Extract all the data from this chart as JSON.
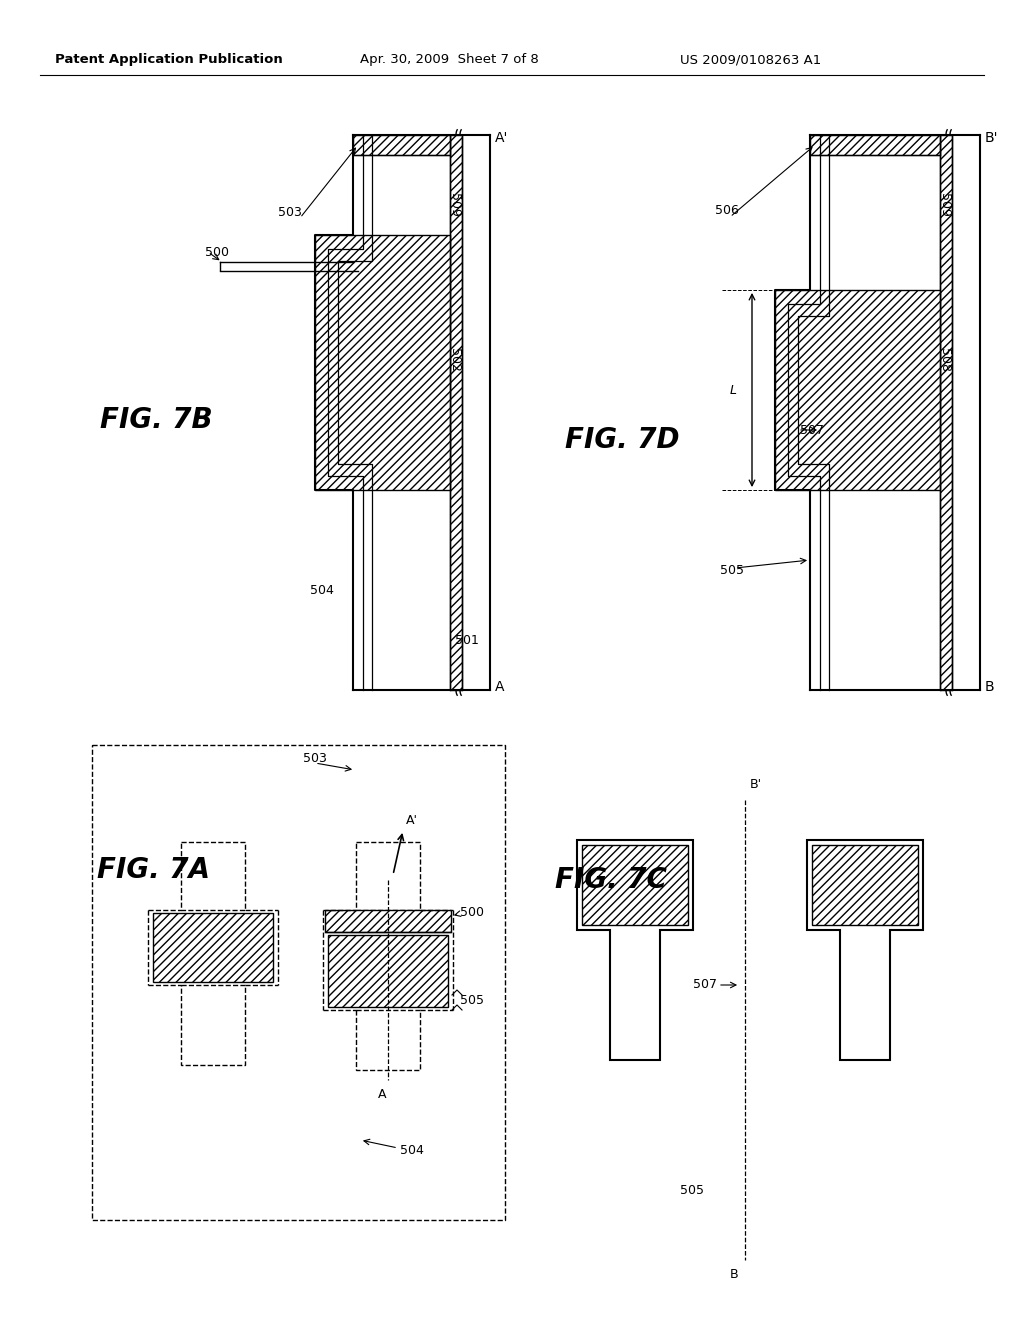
{
  "bg_color": "#ffffff",
  "header_left": "Patent Application Publication",
  "header_mid": "Apr. 30, 2009  Sheet 7 of 8",
  "header_right": "US 2009/0108263 A1"
}
